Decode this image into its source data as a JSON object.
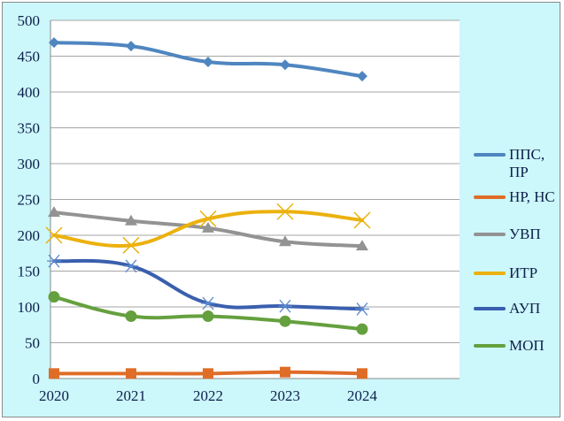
{
  "chart_data": {
    "type": "line",
    "title": "",
    "xlabel": "",
    "ylabel": "",
    "categories": [
      "2020",
      "2021",
      "2022",
      "2023",
      "2024"
    ],
    "ylim": [
      0,
      500
    ],
    "yticks": [
      "0",
      "50",
      "100",
      "150",
      "200",
      "250",
      "300",
      "350",
      "400",
      "450",
      "500"
    ],
    "grid": true,
    "legend_position": "right",
    "series": [
      {
        "name": "ППС, ПР",
        "color": "#4f86c0",
        "marker": "diamond",
        "values": [
          469,
          464,
          442,
          438,
          422
        ]
      },
      {
        "name": "НР, НС",
        "color": "#df6d28",
        "marker": "square",
        "values": [
          7,
          7,
          7,
          9,
          7
        ]
      },
      {
        "name": "УВП",
        "color": "#939393",
        "marker": "triangle",
        "values": [
          232,
          220,
          210,
          191,
          185
        ]
      },
      {
        "name": "ИТР",
        "color": "#ebb10d",
        "marker": "x",
        "values": [
          200,
          186,
          223,
          233,
          221
        ]
      },
      {
        "name": "АУП",
        "color": "#3a5fae",
        "marker": "star",
        "values": [
          164,
          157,
          105,
          101,
          97
        ]
      },
      {
        "name": "МОП",
        "color": "#65a03f",
        "marker": "circle",
        "values": [
          114,
          87,
          87,
          80,
          69
        ]
      }
    ]
  }
}
